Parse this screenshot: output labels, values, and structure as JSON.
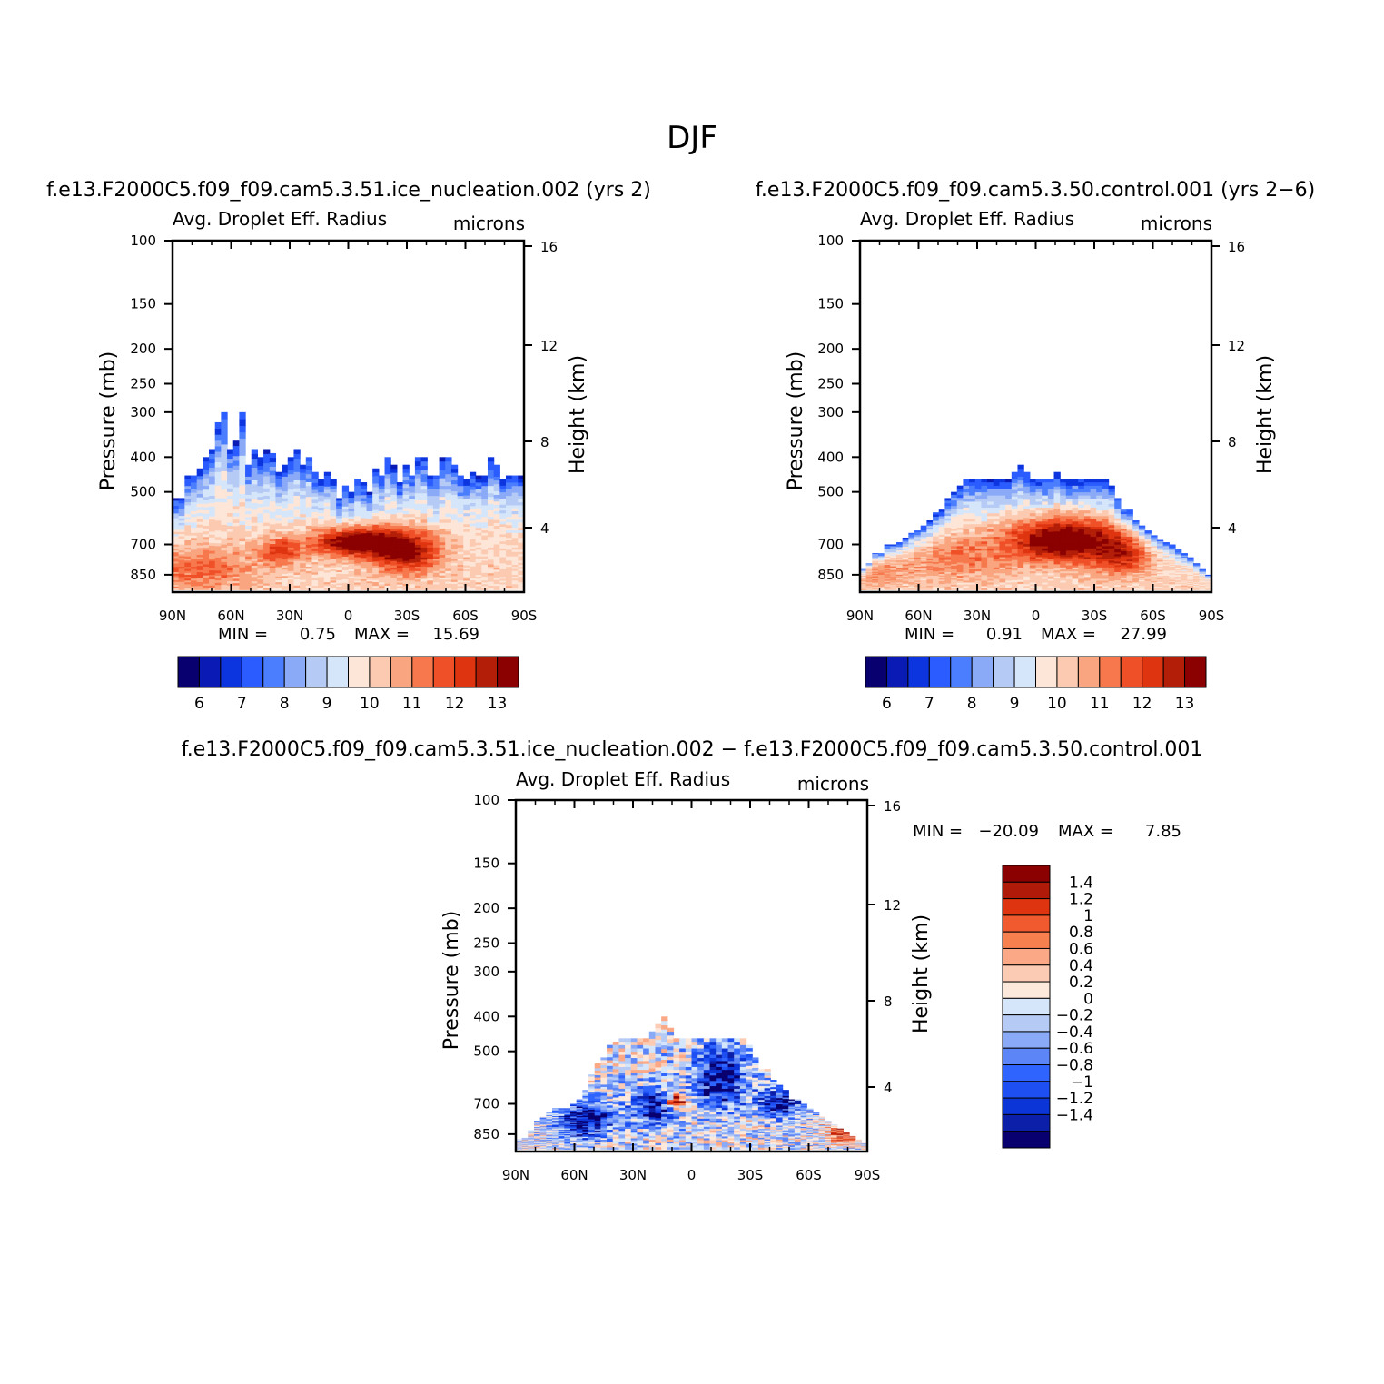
{
  "figure_title": "DJF",
  "colors": {
    "axis": "#000000",
    "mean_palette": [
      "#08006e",
      "#0a1ab5",
      "#0c35e0",
      "#2b5cff",
      "#4a7eff",
      "#8aaaf8",
      "#b5cbf5",
      "#d6e6fa",
      "#fde6d8",
      "#fccab0",
      "#f9a57f",
      "#f7784d",
      "#f05028",
      "#de3510",
      "#b31e08",
      "#8b0000"
    ],
    "diff_palette": [
      "#08006e",
      "#0c1fa8",
      "#0c35d8",
      "#1d4ff2",
      "#2f64ff",
      "#5c86f7",
      "#8aaaf8",
      "#b5cbf5",
      "#d6e6fa",
      "#fde8dc",
      "#fccbb4",
      "#faa886",
      "#f7804f",
      "#f05a2e",
      "#de3510",
      "#b01a08",
      "#8b0000"
    ]
  },
  "chart_data": [
    {
      "type": "heatmap",
      "id": "panel-a",
      "title": "f.e13.F2000C5.f09_f09.cam5.3.51.ice_nucleation.002 (yrs 2)",
      "left_string": "Avg. Droplet Eff. Radius",
      "right_string": "microns",
      "ylabel": "Pressure (mb)",
      "y2label": "Height (km)",
      "x_ticks": [
        "90N",
        "60N",
        "30N",
        "0",
        "30S",
        "60S",
        "90S"
      ],
      "xlim": [
        90,
        -90
      ],
      "y_ticks": [
        100,
        150,
        200,
        250,
        300,
        400,
        500,
        700,
        850
      ],
      "ylim": [
        100,
        950
      ],
      "y2_ticks": [
        16,
        12,
        8,
        4
      ],
      "min_label": "MIN =",
      "min_value": "0.75",
      "max_label": "MAX =",
      "max_value": "15.69",
      "colorbar_labels": [
        "6",
        "7",
        "8",
        "9",
        "10",
        "11",
        "12",
        "13"
      ],
      "field_top_pressure": [
        520,
        520,
        450,
        450,
        430,
        400,
        380,
        320,
        300,
        380,
        360,
        300,
        420,
        380,
        400,
        380,
        390,
        440,
        420,
        400,
        380,
        420,
        400,
        440,
        460,
        440,
        460,
        520,
        480,
        500,
        460,
        470,
        500,
        430,
        450,
        400,
        420,
        470,
        420,
        450,
        400,
        400,
        450,
        450,
        400,
        400,
        420,
        450,
        460,
        440,
        450,
        450,
        400,
        420,
        460,
        450,
        450,
        450
      ],
      "blobs": [
        {
          "lat": -5,
          "p": 690,
          "slat": 16,
          "sp": 45,
          "amp": 4.0
        },
        {
          "lat": -30,
          "p": 740,
          "slat": 12,
          "sp": 70,
          "amp": 3.0
        },
        {
          "lat": 35,
          "p": 730,
          "slat": 8,
          "sp": 45,
          "amp": 2.0
        },
        {
          "lat": 75,
          "p": 820,
          "slat": 18,
          "sp": 80,
          "amp": 1.5
        }
      ],
      "base_value": 9.6
    },
    {
      "type": "heatmap",
      "id": "panel-b",
      "title": "f.e13.F2000C5.f09_f09.cam5.3.50.control.001 (yrs 2-6)",
      "left_string": "Avg. Droplet Eff. Radius",
      "right_string": "microns",
      "ylabel": "Pressure (mb)",
      "y2label": "Height (km)",
      "x_ticks": [
        "90N",
        "60N",
        "30N",
        "0",
        "30S",
        "60S",
        "90S"
      ],
      "xlim": [
        90,
        -90
      ],
      "y_ticks": [
        100,
        150,
        200,
        250,
        300,
        400,
        500,
        700,
        850
      ],
      "ylim": [
        100,
        950
      ],
      "y2_ticks": [
        16,
        12,
        8,
        4
      ],
      "min_label": "MIN =",
      "min_value": "0.91",
      "max_label": "MAX =",
      "max_value": "27.99",
      "colorbar_labels": [
        "6",
        "7",
        "8",
        "9",
        "10",
        "11",
        "12",
        "13"
      ],
      "field_top_pressure": [
        820,
        790,
        740,
        740,
        700,
        700,
        690,
        670,
        650,
        640,
        620,
        600,
        570,
        560,
        520,
        500,
        480,
        460,
        460,
        460,
        460,
        460,
        460,
        460,
        460,
        440,
        420,
        440,
        460,
        460,
        460,
        460,
        440,
        460,
        460,
        460,
        460,
        460,
        460,
        460,
        460,
        480,
        520,
        560,
        560,
        600,
        620,
        640,
        660,
        680,
        690,
        700,
        720,
        740,
        760,
        790,
        820,
        850
      ],
      "blobs": [
        {
          "lat": -15,
          "p": 680,
          "slat": 20,
          "sp": 70,
          "amp": 4.2
        },
        {
          "lat": -45,
          "p": 760,
          "slat": 10,
          "sp": 70,
          "amp": 2.0
        },
        {
          "lat": 40,
          "p": 760,
          "slat": 18,
          "sp": 80,
          "amp": 1.3
        },
        {
          "lat": 80,
          "p": 830,
          "slat": 10,
          "sp": 60,
          "amp": 1.0
        }
      ],
      "base_value": 9.6
    },
    {
      "type": "heatmap",
      "id": "panel-c",
      "title": "f.e13.F2000C5.f09_f09.cam5.3.51.ice_nucleation.002 - f.e13.F2000C5.f09_f09.cam5.3.50.control.001",
      "left_string": "Avg. Droplet Eff. Radius",
      "right_string": "microns",
      "ylabel": "Pressure (mb)",
      "y2label": "Height (km)",
      "x_ticks": [
        "90N",
        "60N",
        "30N",
        "0",
        "30S",
        "60S",
        "90S"
      ],
      "xlim": [
        90,
        -90
      ],
      "y_ticks": [
        100,
        150,
        200,
        250,
        300,
        400,
        500,
        700,
        850
      ],
      "ylim": [
        100,
        950
      ],
      "y2_ticks": [
        16,
        12,
        8,
        4
      ],
      "min_label": "MIN =",
      "min_value": "-20.09",
      "max_label": "MAX =",
      "max_value": "7.85",
      "colorbar_labels": [
        "1.4",
        "1.2",
        "1",
        "0.8",
        "0.6",
        "0.4",
        "0.2",
        "0",
        "-0.2",
        "-0.4",
        "-0.6",
        "-0.8",
        "-1",
        "-1.2",
        "-1.4"
      ],
      "field_top_pressure": [
        880,
        870,
        830,
        780,
        760,
        740,
        720,
        720,
        720,
        700,
        680,
        640,
        580,
        540,
        520,
        480,
        470,
        460,
        460,
        460,
        460,
        460,
        440,
        420,
        400,
        430,
        460,
        460,
        460,
        460,
        460,
        460,
        460,
        460,
        460,
        460,
        460,
        460,
        480,
        520,
        560,
        560,
        600,
        620,
        640,
        680,
        680,
        700,
        720,
        740,
        760,
        780,
        800,
        820,
        840,
        860,
        880,
        900
      ],
      "blobs": [
        {
          "lat": 55,
          "p": 780,
          "slat": 10,
          "sp": 70,
          "amp": -1.6
        },
        {
          "lat": 20,
          "p": 720,
          "slat": 8,
          "sp": 60,
          "amp": -1.4
        },
        {
          "lat": -15,
          "p": 600,
          "slat": 10,
          "sp": 90,
          "amp": -1.5
        },
        {
          "lat": -45,
          "p": 700,
          "slat": 8,
          "sp": 50,
          "amp": -1.5
        },
        {
          "lat": 8,
          "p": 690,
          "slat": 3,
          "sp": 20,
          "amp": 2.2
        },
        {
          "lat": -78,
          "p": 840,
          "slat": 6,
          "sp": 40,
          "amp": 1.2
        }
      ],
      "base_value": 0.0
    }
  ]
}
